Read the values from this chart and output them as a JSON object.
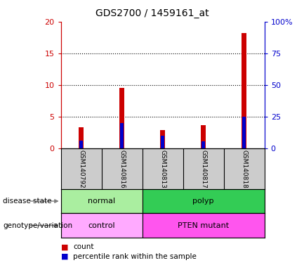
{
  "title": "GDS2700 / 1459161_at",
  "samples": [
    "GSM140792",
    "GSM140816",
    "GSM140813",
    "GSM140817",
    "GSM140818"
  ],
  "counts": [
    3.3,
    9.5,
    2.9,
    3.7,
    18.2
  ],
  "percentile_ranks": [
    6.0,
    20.0,
    10.0,
    5.5,
    25.0
  ],
  "ylim_left": [
    0,
    20
  ],
  "ylim_right": [
    0,
    100
  ],
  "yticks_left": [
    0,
    5,
    10,
    15,
    20
  ],
  "yticks_right": [
    0,
    25,
    50,
    75,
    100
  ],
  "ytick_labels_right": [
    "0",
    "25",
    "50",
    "75",
    "100%"
  ],
  "disease_states": [
    {
      "label": "normal",
      "span": [
        0,
        2
      ],
      "color": "#AAEEA0"
    },
    {
      "label": "polyp",
      "span": [
        2,
        5
      ],
      "color": "#33CC55"
    }
  ],
  "genotype_variations": [
    {
      "label": "control",
      "span": [
        0,
        2
      ],
      "color": "#FFAAFF"
    },
    {
      "label": "PTEN mutant",
      "span": [
        2,
        5
      ],
      "color": "#FF55EE"
    }
  ],
  "bar_width": 0.12,
  "count_color": "#CC0000",
  "percentile_color": "#0000CC",
  "grid_color": "black",
  "bg_color": "#CCCCCC",
  "left_axis_color": "#CC0000",
  "right_axis_color": "#0000CC",
  "legend_count_label": "count",
  "legend_percentile_label": "percentile rank within the sample",
  "label_disease": "disease state",
  "label_geno": "genotype/variation"
}
